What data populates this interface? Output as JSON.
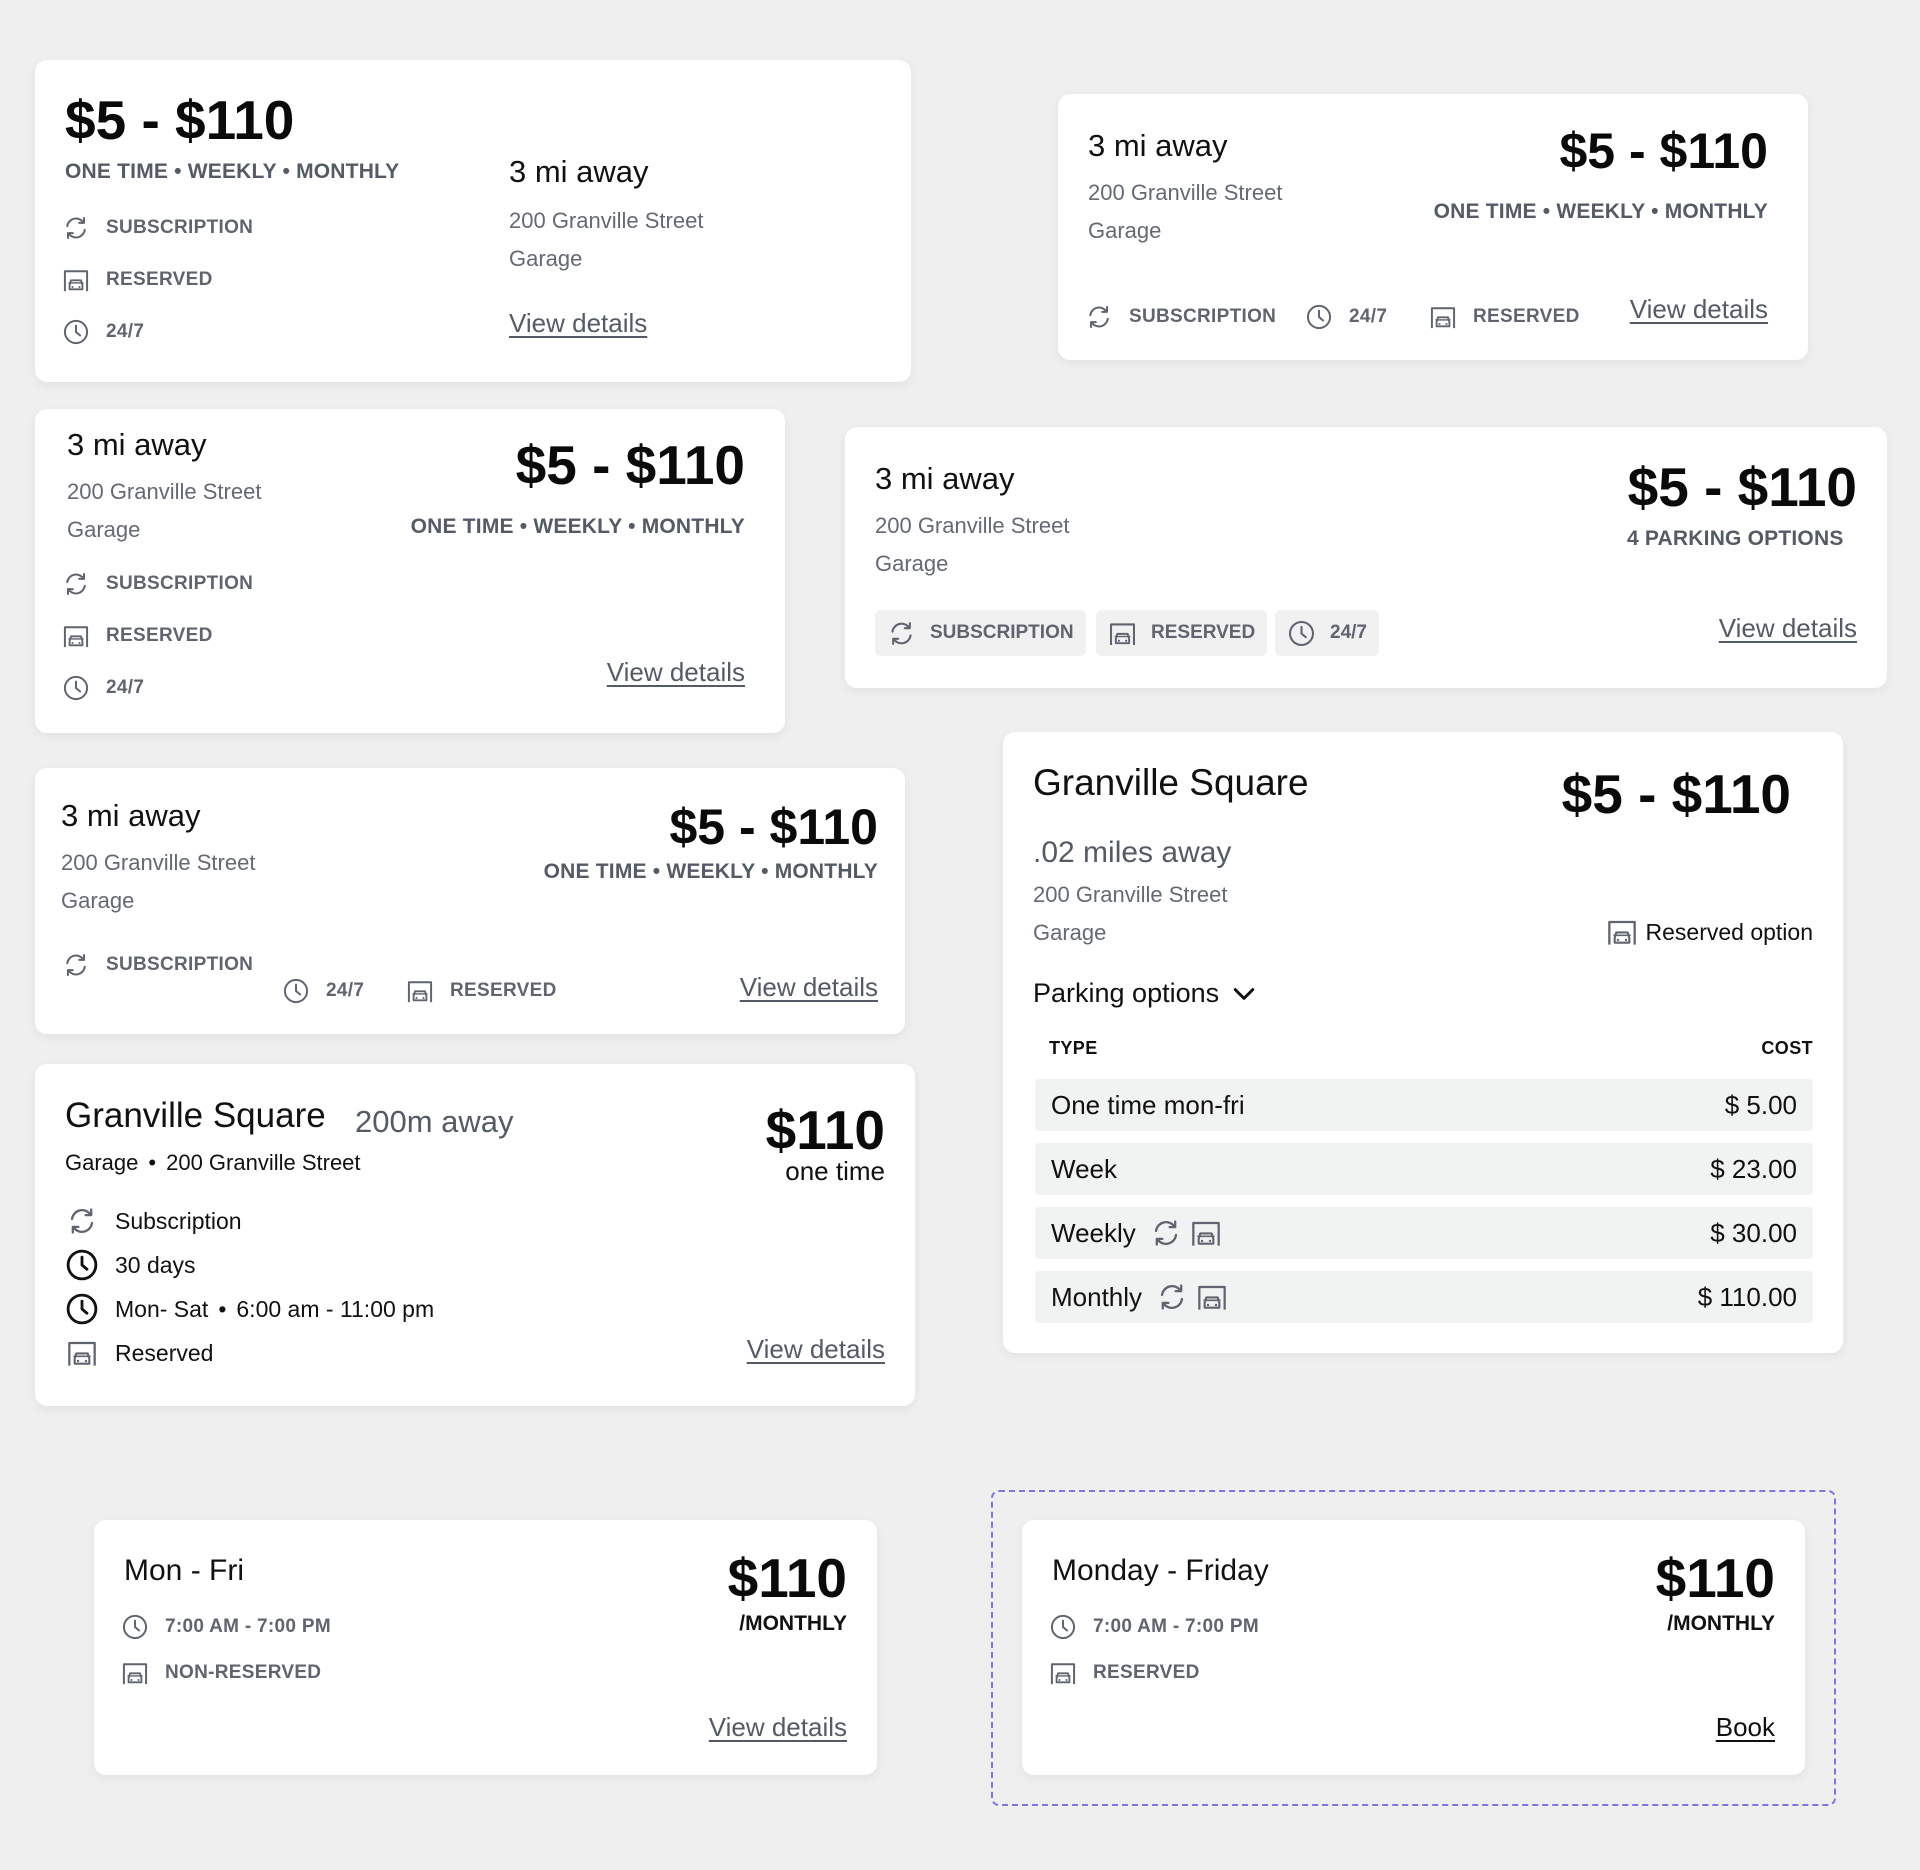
{
  "colors": {
    "background": "#efefef",
    "card": "#ffffff",
    "muted_text": "#5f646e",
    "row_fill": "#f1f2f2",
    "dashed_outline": "#7d74e8"
  },
  "icons": {
    "subscription": "refresh-icon",
    "reserved": "parking-garage-icon",
    "hours": "clock-icon",
    "expand": "chevron-down-icon"
  },
  "card1": {
    "price": "$5 - $110",
    "plans": "ONE TIME • WEEKLY • MONTHLY",
    "distance": "3 mi away",
    "address": "200 Granville Street",
    "type": "Garage",
    "features": [
      "SUBSCRIPTION",
      "RESERVED",
      "24/7"
    ],
    "link": "View details"
  },
  "card2": {
    "distance": "3 mi away",
    "address": "200 Granville Street",
    "type": "Garage",
    "price": "$5 - $110",
    "plans": "ONE TIME • WEEKLY • MONTHLY",
    "features": [
      "SUBSCRIPTION",
      "24/7",
      "RESERVED"
    ],
    "link": "View details"
  },
  "card3": {
    "distance": "3 mi away",
    "address": "200 Granville Street",
    "type": "Garage",
    "price": "$5 - $110",
    "plans": "ONE TIME • WEEKLY • MONTHLY",
    "features": [
      "SUBSCRIPTION",
      "RESERVED",
      "24/7"
    ],
    "link": "View details"
  },
  "card4": {
    "distance": "3 mi away",
    "address": "200 Granville Street",
    "type": "Garage",
    "price": "$5 - $110",
    "options_count": "4 PARKING OPTIONS",
    "features": [
      "SUBSCRIPTION",
      "RESERVED",
      "24/7"
    ],
    "link": "View details"
  },
  "card5": {
    "distance": "3 mi away",
    "address": "200 Granville Street",
    "type": "Garage",
    "price": "$5 - $110",
    "plans": "ONE TIME • WEEKLY • MONTHLY",
    "features": [
      "SUBSCRIPTION",
      "24/7",
      "RESERVED"
    ],
    "link": "View details"
  },
  "card6": {
    "name": "Granville Square",
    "price": "$5 - $110",
    "distance": ".02 miles away",
    "address": "200 Granville Street",
    "type": "Garage",
    "reserved_label": "Reserved option",
    "options_toggle": "Parking options",
    "col_type": "TYPE",
    "col_cost": "COST",
    "rows": [
      {
        "type": "One time mon-fri",
        "cost": "$ 5.00"
      },
      {
        "type": "Week",
        "cost": "$ 23.00"
      },
      {
        "type": "Weekly",
        "cost": "$ 30.00"
      },
      {
        "type": "Monthly",
        "cost": "$ 110.00"
      }
    ]
  },
  "card7": {
    "name": "Granville Square",
    "distance": "200m away",
    "type": "Garage",
    "address": "200 Granville Street",
    "price": "$110",
    "price_unit": "one time",
    "features": [
      "Subscription",
      "30 days",
      "Mon- Sat",
      "6:00 am - 11:00 pm",
      "Reserved"
    ],
    "link": "View details"
  },
  "card8": {
    "days": "Mon - Fri",
    "price": "$110",
    "price_unit": "/MONTHLY",
    "hours": "7:00 AM - 7:00 PM",
    "reservation": "NON-RESERVED",
    "link": "View details"
  },
  "card9": {
    "days": "Monday - Friday",
    "price": "$110",
    "price_unit": "/MONTHLY",
    "hours": "7:00 AM - 7:00 PM",
    "reservation": "RESERVED",
    "link": "Book"
  },
  "separator": "•"
}
